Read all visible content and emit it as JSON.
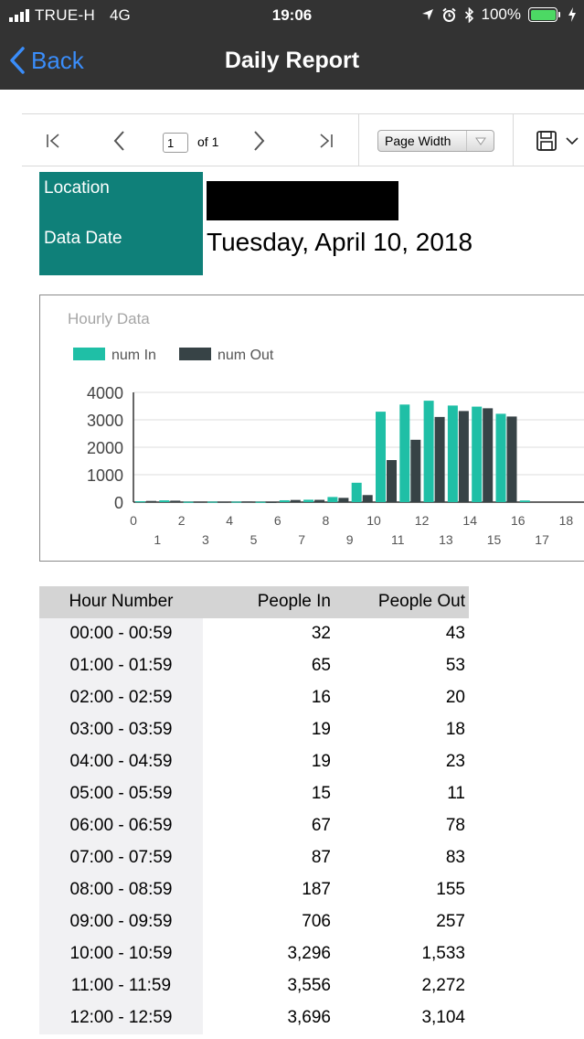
{
  "status_bar": {
    "carrier": "TRUE-H",
    "network": "4G",
    "time": "19:06",
    "battery": "100%",
    "battery_level": 1.0,
    "icons": [
      "signal-icon",
      "location-arrow-icon",
      "alarm-icon",
      "bluetooth-icon",
      "battery-icon",
      "charging-icon"
    ]
  },
  "nav": {
    "back_label": "Back",
    "title": "Daily Report"
  },
  "toolbar": {
    "page_value": "1",
    "page_of": "of 1",
    "zoom_label": "Page Width",
    "icons": [
      "first-page-icon",
      "previous-page-icon",
      "next-page-icon",
      "last-page-icon",
      "save-icon",
      "chevron-down-icon"
    ]
  },
  "header": {
    "location_label": "Location",
    "data_date_label": "Data Date",
    "data_date_value": "Tuesday, April 10, 2018"
  },
  "colors": {
    "bar_bg": "#333333",
    "accent_blue": "#3a8dfa",
    "teal_box": "#0f8079",
    "series_in": "#1fbfa6",
    "series_out": "#374346",
    "battery_green": "#4cd964"
  },
  "chart_data": {
    "type": "bar",
    "title": "Hourly Data",
    "x": [
      0,
      1,
      2,
      3,
      4,
      5,
      6,
      7,
      8,
      9,
      10,
      11,
      12,
      13,
      14,
      15,
      16,
      17,
      18
    ],
    "x_tick_labels_top": [
      "0",
      "2",
      "4",
      "6",
      "8",
      "10",
      "12",
      "14",
      "16",
      "18"
    ],
    "x_tick_labels_bottom": [
      "1",
      "3",
      "5",
      "7",
      "9",
      "11",
      "13",
      "15",
      "17"
    ],
    "y_tick_labels": [
      "4000",
      "3000",
      "2000",
      "1000",
      "0"
    ],
    "ylim": [
      0,
      4000
    ],
    "grid": true,
    "legend_position": "top-left",
    "series": [
      {
        "name": "num In",
        "values": [
          32,
          65,
          16,
          19,
          19,
          15,
          67,
          87,
          187,
          706,
          3296,
          3556,
          3696,
          3520,
          3480,
          3220,
          60,
          0,
          0
        ]
      },
      {
        "name": "num Out",
        "values": [
          43,
          53,
          20,
          18,
          23,
          11,
          78,
          83,
          155,
          257,
          1533,
          2272,
          3104,
          3320,
          3420,
          3120,
          0,
          0,
          0
        ]
      }
    ]
  },
  "table": {
    "headers": [
      "Hour Number",
      "People In",
      "People Out"
    ],
    "rows": [
      [
        "00:00 - 00:59",
        "32",
        "43"
      ],
      [
        "01:00 - 01:59",
        "65",
        "53"
      ],
      [
        "02:00 - 02:59",
        "16",
        "20"
      ],
      [
        "03:00 - 03:59",
        "19",
        "18"
      ],
      [
        "04:00 - 04:59",
        "19",
        "23"
      ],
      [
        "05:00 - 05:59",
        "15",
        "11"
      ],
      [
        "06:00 - 06:59",
        "67",
        "78"
      ],
      [
        "07:00 - 07:59",
        "87",
        "83"
      ],
      [
        "08:00 - 08:59",
        "187",
        "155"
      ],
      [
        "09:00 - 09:59",
        "706",
        "257"
      ],
      [
        "10:00 - 10:59",
        "3,296",
        "1,533"
      ],
      [
        "11:00 - 11:59",
        "3,556",
        "2,272"
      ],
      [
        "12:00 - 12:59",
        "3,696",
        "3,104"
      ]
    ]
  }
}
